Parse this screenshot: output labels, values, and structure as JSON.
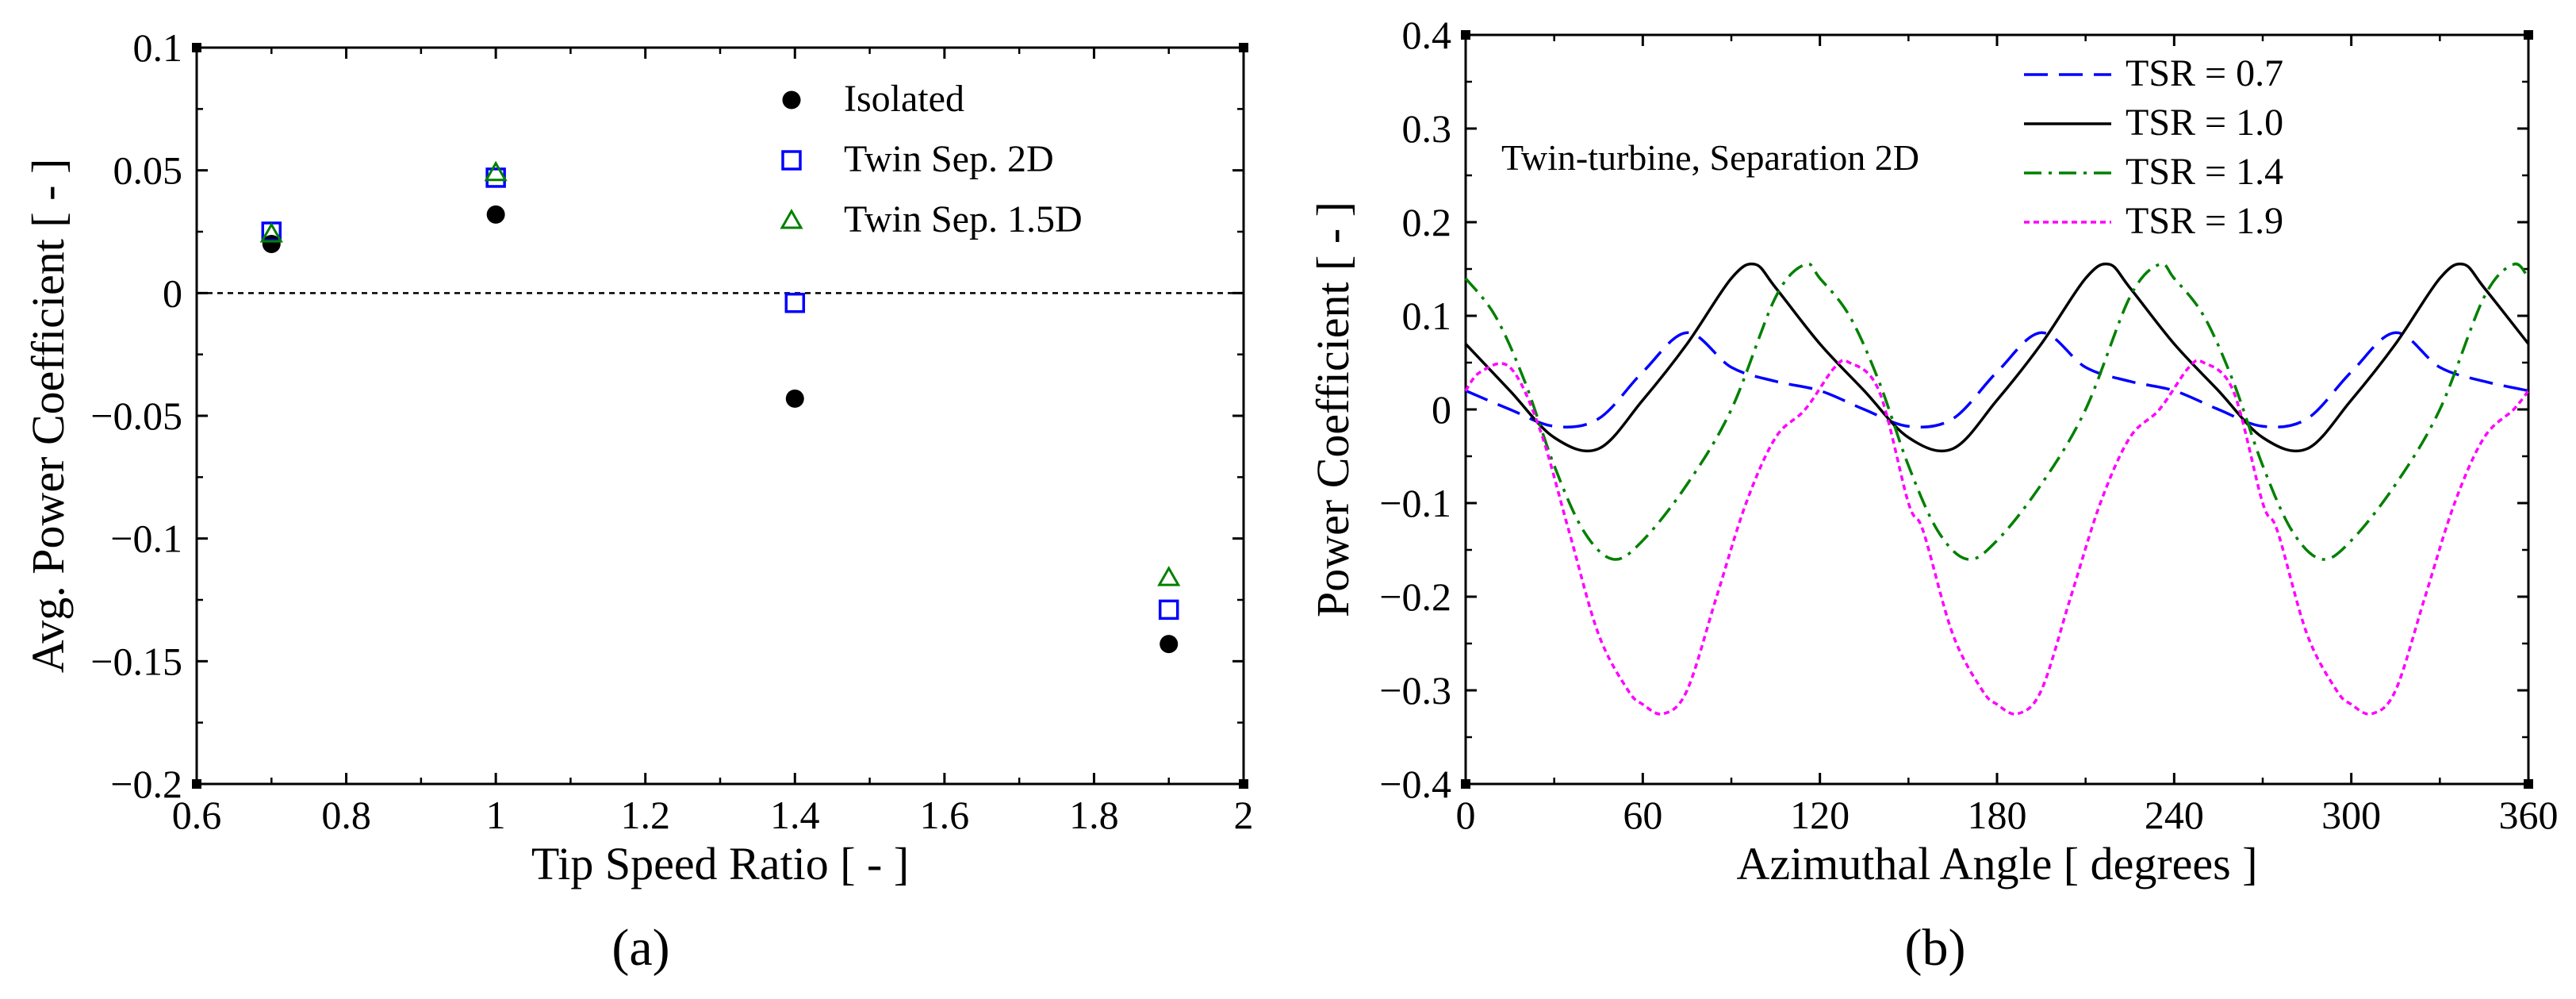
{
  "chart_data": [
    {
      "panel": "(a)",
      "type": "scatter",
      "xlabel": "Tip Speed Ratio [ - ]",
      "ylabel": "Avg. Power Coefficient [ - ]",
      "xlim": [
        0.6,
        2.0
      ],
      "ylim": [
        -0.2,
        0.1
      ],
      "xticks": [
        "0.6",
        "0.8",
        "1",
        "1.2",
        "1.4",
        "1.6",
        "1.8",
        "2"
      ],
      "yticks": [
        "0.1",
        "0.05",
        "0",
        "−0.05",
        "−0.1",
        "−0.15",
        "−0.2"
      ],
      "reference_line_y": 0,
      "legend_position": "top-right",
      "series": [
        {
          "name": "Isolated",
          "marker": "filled-circle",
          "color": "#000000",
          "x": [
            0.7,
            1.0,
            1.4,
            1.9
          ],
          "y": [
            0.02,
            0.032,
            -0.043,
            -0.143
          ]
        },
        {
          "name": "Twin Sep. 2D",
          "marker": "open-square",
          "color": "#0000ff",
          "x": [
            0.7,
            1.0,
            1.4,
            1.9
          ],
          "y": [
            0.025,
            0.047,
            -0.004,
            -0.129
          ]
        },
        {
          "name": "Twin Sep. 1.5D",
          "marker": "open-triangle",
          "color": "#008000",
          "x": [
            0.7,
            1.0,
            1.4,
            1.9
          ],
          "y": [
            0.024,
            0.049,
            null,
            -0.116
          ]
        }
      ]
    },
    {
      "panel": "(b)",
      "type": "line",
      "xlabel": "Azimuthal Angle [ degrees ]",
      "ylabel": "Power Coefficient [ - ]",
      "xlim": [
        0,
        360
      ],
      "ylim": [
        -0.4,
        0.4
      ],
      "xticks": [
        "0",
        "60",
        "120",
        "180",
        "240",
        "300",
        "360"
      ],
      "yticks": [
        "0.4",
        "0.3",
        "0.2",
        "0.1",
        "0",
        "−0.1",
        "−0.2",
        "−0.3",
        "−0.4"
      ],
      "annotation": "Twin-turbine, Separation 2D",
      "legend_position": "top-right",
      "period_degrees": 120,
      "series": [
        {
          "name": "TSR = 0.7",
          "color": "#0000ff",
          "dash": "dashed",
          "x": [
            0,
            15,
            30,
            45,
            60,
            75,
            90,
            105,
            120
          ],
          "y": [
            0.02,
            0.0,
            -0.018,
            -0.01,
            0.04,
            0.082,
            0.045,
            0.03,
            0.02
          ]
        },
        {
          "name": "TSR = 1.0",
          "color": "#000000",
          "dash": "solid",
          "x": [
            0,
            15,
            30,
            45,
            60,
            75,
            90,
            98,
            105,
            120
          ],
          "y": [
            0.07,
            0.02,
            -0.03,
            -0.042,
            0.01,
            0.07,
            0.14,
            0.155,
            0.13,
            0.07
          ]
        },
        {
          "name": "TSR = 1.4",
          "color": "#008000",
          "dash": "dash-dot",
          "x": [
            0,
            10,
            20,
            30,
            40,
            50,
            60,
            75,
            90,
            105,
            115,
            120
          ],
          "y": [
            0.14,
            0.1,
            0.03,
            -0.06,
            -0.13,
            -0.16,
            -0.14,
            -0.08,
            0.0,
            0.12,
            0.155,
            0.14
          ]
        },
        {
          "name": "TSR = 1.9",
          "color": "#ff00ff",
          "dash": "dotted",
          "x": [
            0,
            5,
            15,
            25,
            35,
            45,
            55,
            60,
            67,
            75,
            85,
            95,
            105,
            115,
            125,
            130,
            140,
            150,
            155,
            165,
            175,
            180,
            187,
            195,
            205,
            215,
            225,
            235,
            245,
            250,
            260,
            270,
            275,
            285,
            295,
            300,
            307,
            315,
            325,
            335,
            345,
            355,
            360
          ],
          "y": [
            0.02,
            0.04,
            0.045,
            -0.02,
            -0.13,
            -0.24,
            -0.3,
            -0.315,
            -0.325,
            -0.3,
            -0.2,
            -0.1,
            -0.03,
            0.0,
            0.045,
            0.05,
            0.02,
            -0.1,
            -0.13,
            -0.24,
            -0.3,
            -0.315,
            -0.325,
            -0.3,
            -0.2,
            -0.1,
            -0.03,
            0.0,
            0.045,
            0.05,
            0.02,
            -0.1,
            -0.13,
            -0.24,
            -0.3,
            -0.315,
            -0.325,
            -0.3,
            -0.2,
            -0.1,
            -0.03,
            0.0,
            0.02
          ]
        }
      ]
    }
  ]
}
